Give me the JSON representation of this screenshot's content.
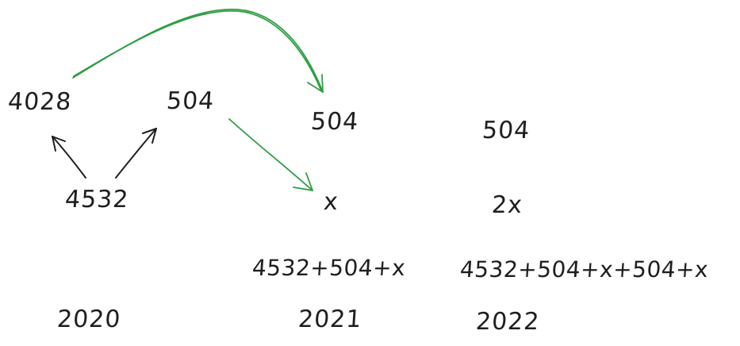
{
  "nodes": {
    "n4028": "4028",
    "n504_a": "504",
    "n4532": "4532",
    "n504_b": "504",
    "nx": "x",
    "n504_c": "504",
    "n2x": "2x",
    "expr2021": "4532+504+x",
    "expr2022": "4532+504+x+504+x"
  },
  "years": {
    "y2020": "2020",
    "y2021": "2021",
    "y2022": "2022"
  },
  "colors": {
    "ink": "#1e1e1e",
    "green": "#2f9e44"
  }
}
